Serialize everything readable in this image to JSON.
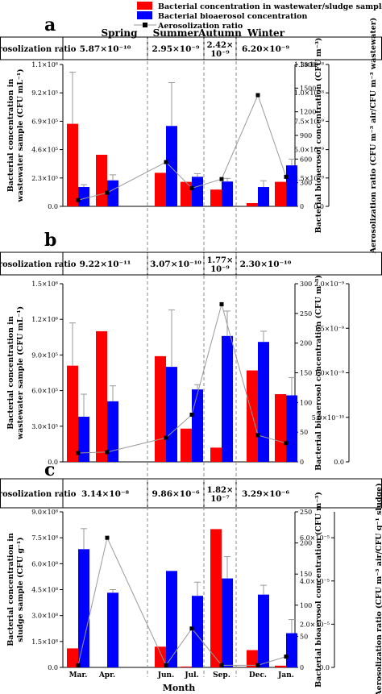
{
  "legend": {
    "items": [
      {
        "label": "Bacterial concentration in wastewater/sludge sample",
        "color": "#ff0000",
        "type": "box"
      },
      {
        "label": "Bacterial bioaerosol concentration",
        "color": "#0000ff",
        "type": "box"
      },
      {
        "label": "Aerosolization ratio",
        "color": "#808080",
        "type": "line-square"
      }
    ]
  },
  "colors": {
    "red": "#ff0000",
    "blue": "#0000ff",
    "line": "#9a9a9a",
    "marker": "#000000"
  },
  "x_axis_title": "Month",
  "month_labels": [
    "Mar.",
    "Apr.",
    "Jun.",
    "Jul.",
    "Sep.",
    "Dec.",
    "Jan."
  ],
  "seasons": [
    "Spring",
    "Summer",
    "Autumn",
    "Winter"
  ],
  "chart_data": [
    {
      "panel": "a",
      "type": "bar",
      "ratio_label": "Aerosolization ratio",
      "ratios": [
        "5.87×10⁻¹⁰",
        "2.95×10⁻⁹",
        "2.42×10⁻⁹",
        "6.20×10⁻⁹"
      ],
      "ylabel_left": "Bacterial concentration in wastewater sample (CFU mL⁻¹)",
      "ylabel_right": "Bacterial bioaerosol concentration (CFU m⁻³)",
      "ylabel_ratio": "Aerosolization ratio (CFU m⁻³ air/CFU m⁻³ wastewater)",
      "left_ticks": [
        "0.0",
        "2.3×10⁵",
        "4.6×10⁵",
        "6.9×10⁵",
        "9.2×10⁵",
        "1.1×10⁶"
      ],
      "left_max": 1100000,
      "right_ticks": [
        "0",
        "300",
        "600",
        "900",
        "1200",
        "1500",
        "1800"
      ],
      "right_max": 1800,
      "ratio_ticks": [
        "0.0",
        "2.5×10⁻⁹",
        "5.0×10⁻⁹",
        "7.5×10⁻⁹",
        "1.0×10⁻⁸",
        "1.3×10⁻⁸"
      ],
      "ratio_max": 1.25e-08,
      "series": [
        {
          "name": "Bacterial concentration in wastewater/sludge sample",
          "axis": "left",
          "values": [
            640000,
            400000,
            260000,
            190000,
            130000,
            25000,
            190000
          ],
          "errors": [
            400000,
            0,
            0,
            0,
            0,
            0,
            0
          ]
        },
        {
          "name": "Bacterial bioaerosol concentration",
          "axis": "right",
          "values": [
            245,
            330,
            1020,
            375,
            315,
            245,
            520
          ],
          "errors": [
            30,
            70,
            550,
            40,
            40,
            80,
            80
          ]
        },
        {
          "name": "Aerosolization ratio",
          "axis": "ratio",
          "values": [
            5.5e-10,
            1.2e-09,
            3.9e-09,
            1.6e-09,
            2.4e-09,
            9.8e-09,
            2.6e-09
          ]
        }
      ]
    },
    {
      "panel": "b",
      "type": "bar",
      "ratio_label": "Aerosolization ratio",
      "ratios": [
        "9.22×10⁻¹¹",
        "3.07×10⁻¹⁰",
        "1.77×10⁻⁹",
        "2.30×10⁻¹⁰"
      ],
      "ylabel_left": "Bacterial concentration in wastewater sample (CFU mL⁻¹)",
      "ylabel_right": "Bacterial bioaerosol concentration (CFU m⁻³)",
      "ylabel_ratio": "Aerosolization ratio (CFU m⁻³ air/CFU m⁻³ wastewater)",
      "left_ticks": [
        "0.0",
        "3.0×10⁵",
        "6.0×10⁵",
        "9.0×10⁵",
        "1.2×10⁶",
        "1.5×10⁶"
      ],
      "left_max": 1500000,
      "right_ticks": [
        "0",
        "50",
        "100",
        "150",
        "200",
        "250",
        "300"
      ],
      "right_max": 300,
      "ratio_ticks": [
        "0.0",
        "5.0×10⁻¹⁰",
        "1.0×10⁻⁹",
        "1.5×10⁻⁹",
        "2.0×10⁻⁹"
      ],
      "ratio_max": 2e-09,
      "series": [
        {
          "name": "Bacterial concentration in wastewater/sludge sample",
          "axis": "left",
          "values": [
            810000,
            1100000,
            890000,
            280000,
            120000,
            770000,
            570000
          ],
          "errors": [
            360000,
            0,
            0,
            0,
            0,
            0,
            0
          ]
        },
        {
          "name": "Bacterial bioaerosol concentration",
          "axis": "right",
          "values": [
            76,
            102,
            160,
            122,
            212,
            202,
            112
          ],
          "errors": [
            38,
            26,
            96,
            8,
            42,
            18,
            30
          ]
        },
        {
          "name": "Aerosolization ratio",
          "axis": "ratio",
          "values": [
            1e-10,
            1.1e-10,
            2.7e-10,
            5.3e-10,
            1.77e-09,
            3e-10,
            2.1e-10
          ]
        }
      ]
    },
    {
      "panel": "c",
      "type": "bar",
      "ratio_label": "Aerosolization ratio",
      "ratios": [
        "3.14×10⁻⁸",
        "9.86×10⁻⁶",
        "1.82×10⁻⁷",
        "3.29×10⁻⁶"
      ],
      "ylabel_left": "Bacterial concentration in sludge sample (CFU g⁻¹)",
      "ylabel_right": "Bacterial bioaerosol concentration (CFU m⁻³)",
      "ylabel_ratio": "Aerosolization ratio (CFU m⁻³ air/CFU g⁻¹ sludge)",
      "left_ticks": [
        "0.0",
        "1.5×10⁸",
        "3.0×10⁸",
        "4.5×10⁸",
        "6.0×10⁸",
        "7.5×10⁸",
        "9.0×10⁸"
      ],
      "left_max": 900000000,
      "right_ticks": [
        "0",
        "50",
        "100",
        "150",
        "200",
        "250"
      ],
      "right_max": 250,
      "ratio_ticks": [
        "0.0",
        "2.0×10⁻⁵",
        "4.0×10⁻⁵",
        "6.0×10⁻⁵"
      ],
      "ratio_max": 7.2e-05,
      "series": [
        {
          "name": "Bacterial concentration in wastewater/sludge sample",
          "axis": "left",
          "values": [
            110000000,
            0,
            120000000,
            5000000,
            800000000,
            100000000,
            10000000
          ],
          "errors": [
            0,
            0,
            0,
            0,
            0,
            0,
            0
          ]
        },
        {
          "name": "Bacterial bioaerosol concentration",
          "axis": "right",
          "values": [
            190,
            120,
            155,
            115,
            143,
            117,
            55
          ],
          "errors": [
            33,
            5,
            0,
            22,
            35,
            15,
            22
          ]
        },
        {
          "name": "Aerosolization ratio",
          "axis": "ratio",
          "values": [
            1e-06,
            6e-05,
            1e-06,
            1.8e-05,
            1e-06,
            1e-06,
            5e-06
          ]
        }
      ]
    }
  ]
}
